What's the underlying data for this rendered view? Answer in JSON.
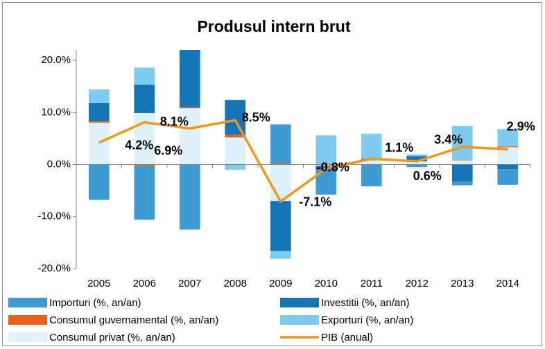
{
  "chart_data": {
    "type": "bar",
    "stacked": true,
    "title": "Produsul intern brut",
    "categories": [
      "2005",
      "2006",
      "2007",
      "2008",
      "2009",
      "2010",
      "2011",
      "2012",
      "2013",
      "2014"
    ],
    "series": [
      {
        "name": "Consumul privat (%, an/an)",
        "color": "#ddf1fb",
        "values": [
          8.0,
          9.9,
          10.8,
          5.2,
          -7.0,
          -0.2,
          0.8,
          0.6,
          0.8,
          3.3
        ]
      },
      {
        "name": "Consumul guvernamental (%, an/an)",
        "color": "#e8601c",
        "values": [
          0.3,
          -0.3,
          0.2,
          0.5,
          0.2,
          -0.1,
          0.0,
          0.0,
          0.1,
          0.2
        ]
      },
      {
        "name": "Investitii (%, an/an)",
        "color": "#1474b4",
        "values": [
          3.5,
          5.4,
          12.0,
          6.7,
          -9.6,
          -0.7,
          0.3,
          1.0,
          -3.3,
          -0.9
        ]
      },
      {
        "name": "Exporturi (%, an/an)",
        "color": "#7ecbf0",
        "values": [
          2.6,
          3.3,
          0.0,
          -1.0,
          -1.5,
          5.6,
          4.8,
          0.3,
          6.5,
          3.3
        ]
      },
      {
        "name": "Importuri (%, an/an)",
        "color": "#3f9bd4",
        "values": [
          -6.8,
          -10.3,
          -12.5,
          0.0,
          7.5,
          -4.8,
          -4.2,
          -0.5,
          -0.7,
          -3.0
        ]
      }
    ],
    "line": {
      "name": "PIB (anual)",
      "color": "#f0961e",
      "values": [
        4.2,
        8.1,
        6.9,
        8.5,
        -7.1,
        -0.8,
        1.1,
        0.6,
        3.4,
        2.9
      ],
      "value_labels": [
        "4.2%",
        "8.1%",
        "6.9%",
        "8.5%",
        "-7.1%",
        "-0.8%",
        "1.1%",
        "0.6%",
        "3.4%",
        "2.9%"
      ]
    },
    "ylim": [
      -20,
      22
    ],
    "yticks": [
      {
        "value": -20,
        "label": "-20.0%"
      },
      {
        "value": -10,
        "label": "-10.0%"
      },
      {
        "value": 0,
        "label": "0.0%"
      },
      {
        "value": 10,
        "label": "10.0%"
      },
      {
        "value": 20,
        "label": "20.0%"
      }
    ],
    "grid": false
  }
}
